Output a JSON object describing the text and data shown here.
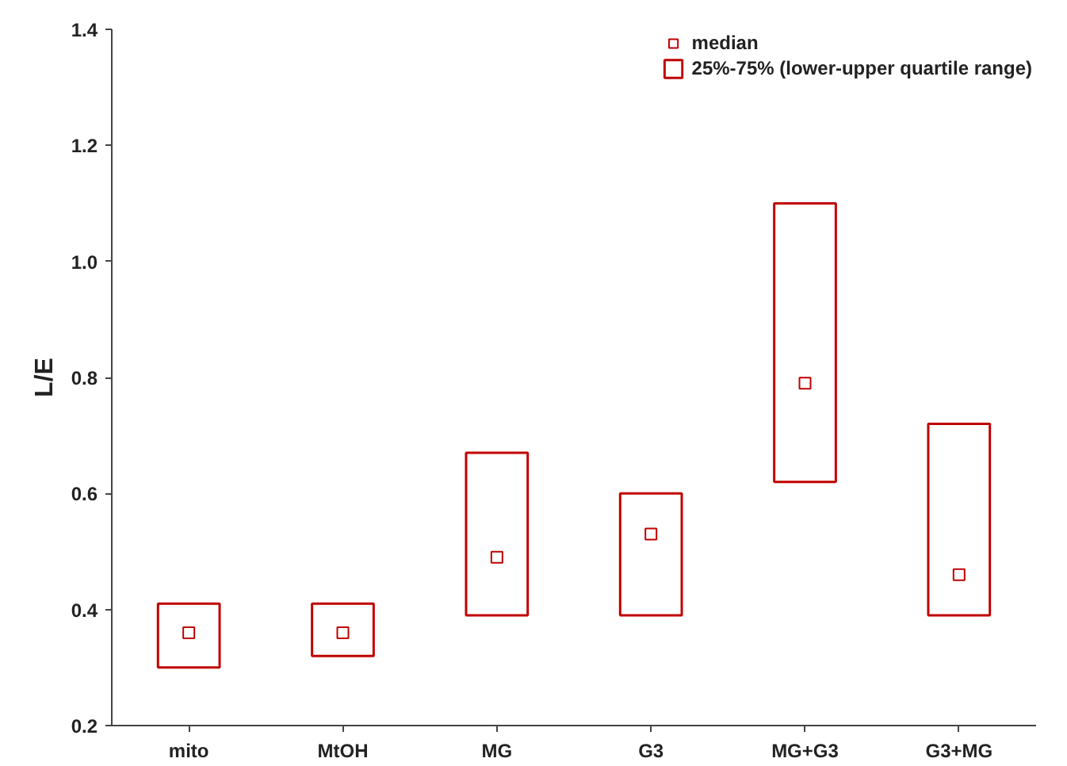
{
  "chart_data": {
    "type": "bar",
    "ylabel": "L/E",
    "categories": [
      "mito",
      "MtOH",
      "MG",
      "G3",
      "MG+G3",
      "G3+MG"
    ],
    "series": [
      {
        "name": "median",
        "type": "scatter",
        "color": "#c00000",
        "x": [
          "mito",
          "MtOH",
          "MG",
          "G3",
          "MG+G3",
          "G3+MG"
        ],
        "values": [
          0.36,
          0.36,
          0.49,
          0.53,
          0.79,
          0.46
        ]
      },
      {
        "name": "25%-75% (lower-upper quartile range)",
        "color": "#c00000",
        "base": [
          0.3,
          0.32,
          0.39,
          0.39,
          0.62,
          0.39
        ],
        "values": [
          0.11,
          0.09,
          0.28,
          0.21,
          0.48,
          0.33
        ]
      }
    ],
    "ylim": [
      0.2,
      1.4
    ],
    "yticks": [
      0.2,
      0.4,
      0.6,
      0.8,
      {
        "value": 1,
        "label": "1.0"
      },
      1.2,
      1.4
    ],
    "grid": false,
    "legend": "top right",
    "marker": "square"
  }
}
